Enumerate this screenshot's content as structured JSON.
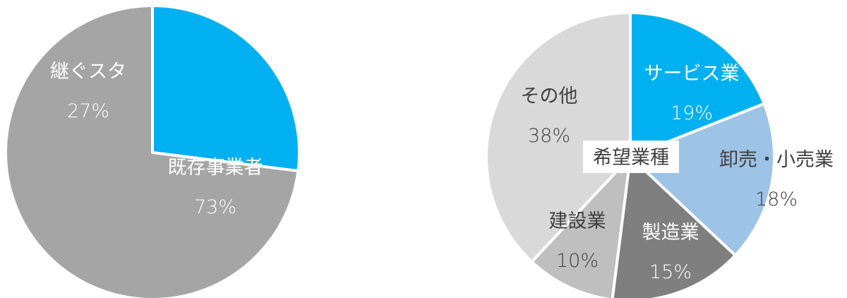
{
  "chart_data": [
    {
      "type": "pie",
      "title": "",
      "slices": [
        {
          "label": "継ぐスタ",
          "value": 27,
          "value_label": "27%",
          "color": "#00B0F0",
          "label_color": "#ffffff"
        },
        {
          "label": "既存事業者",
          "value": 73,
          "value_label": "73%",
          "color": "#A5A5A5",
          "label_color": "#ffffff"
        }
      ]
    },
    {
      "type": "pie",
      "title": "希望業種",
      "slices": [
        {
          "label": "サービス業",
          "value": 19,
          "value_label": "19%",
          "color": "#00B0F0",
          "label_color": "#ffffff"
        },
        {
          "label": "卸売・小売業",
          "value": 18,
          "value_label": "18%",
          "color": "#9DC3E6",
          "label_color": "#404040"
        },
        {
          "label": "製造業",
          "value": 15,
          "value_label": "15%",
          "color": "#7F7F7F",
          "label_color": "#ffffff"
        },
        {
          "label": "建設業",
          "value": 10,
          "value_label": "10%",
          "color": "#BFBFBF",
          "label_color": "#404040"
        },
        {
          "label": "その他",
          "value": 38,
          "value_label": "38%",
          "color": "#D9D9D9",
          "label_color": "#404040"
        }
      ]
    }
  ]
}
